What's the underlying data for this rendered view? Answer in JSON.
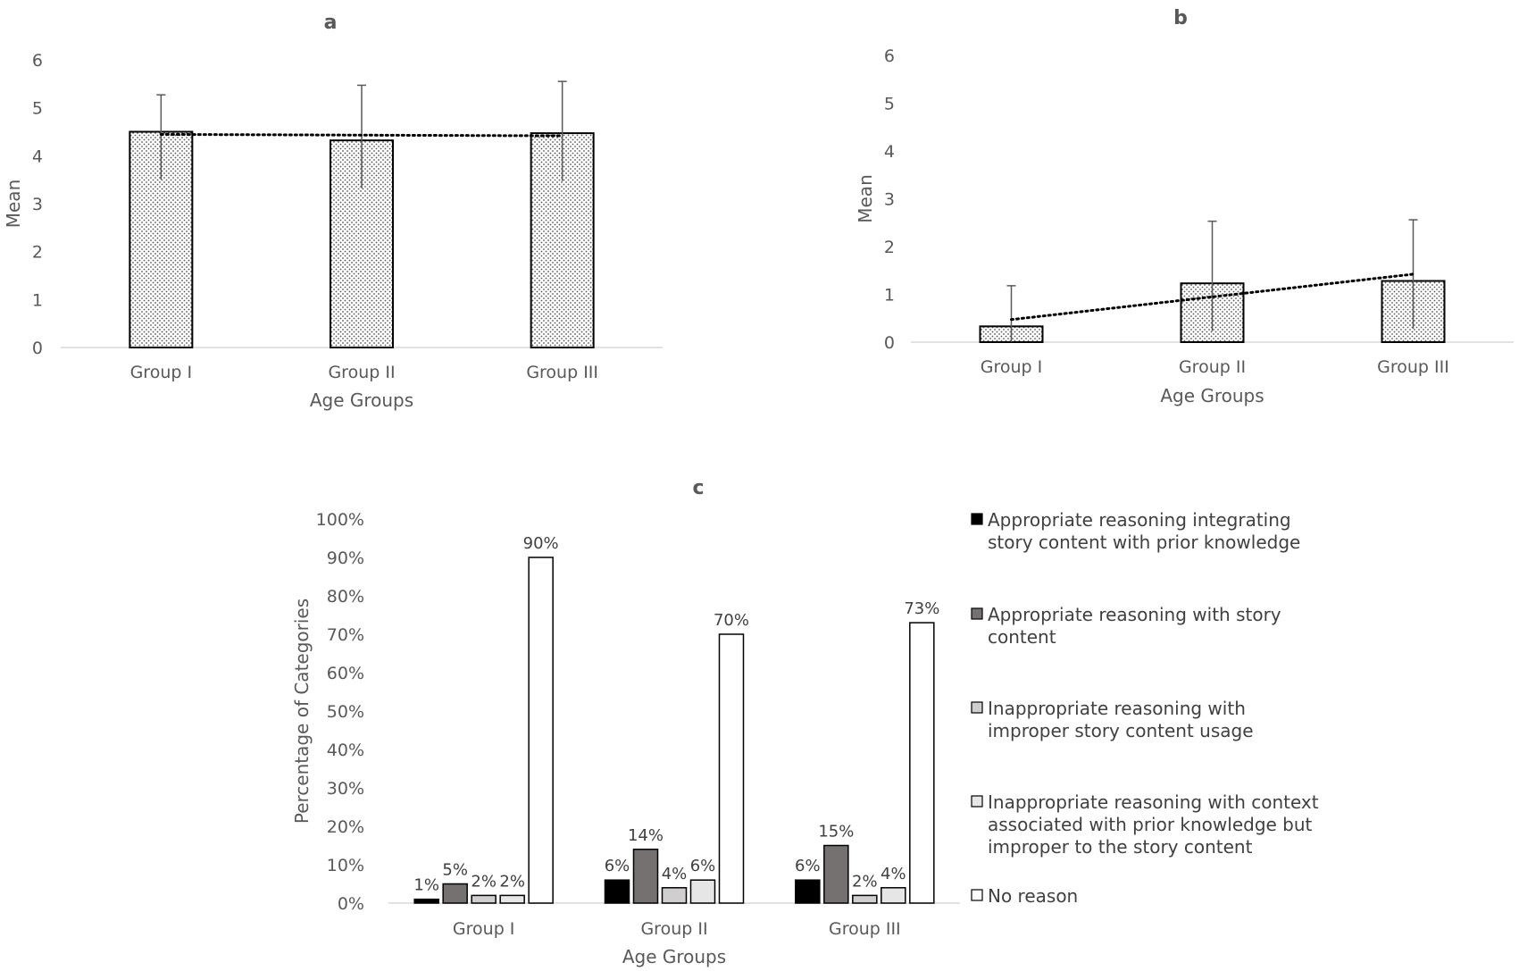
{
  "chart_data": [
    {
      "panel": "a",
      "type": "bar",
      "title": "a",
      "xlabel": "Age Groups",
      "ylabel": "Mean",
      "categories": [
        "Group I",
        "Group II",
        "Group III"
      ],
      "values": [
        4.5,
        4.32,
        4.47
      ],
      "error_plus": [
        0.77,
        1.15,
        1.08
      ],
      "error_minus": [
        1.0,
        1.0,
        1.0
      ],
      "ylim": [
        0,
        6
      ],
      "yticks": [
        "0",
        "1",
        "2",
        "3",
        "4",
        "5",
        "6"
      ],
      "trendline": "linear, dotted",
      "pattern": "dotted fill"
    },
    {
      "panel": "b",
      "type": "bar",
      "title": "b",
      "xlabel": "Age Groups",
      "ylabel": "Mean",
      "categories": [
        "Group I",
        "Group II",
        "Group III"
      ],
      "values": [
        0.33,
        1.23,
        1.28
      ],
      "error_plus": [
        0.85,
        1.3,
        1.28
      ],
      "error_minus": [
        0.33,
        1.0,
        1.0
      ],
      "ylim": [
        0,
        6
      ],
      "yticks": [
        "0",
        "1",
        "2",
        "3",
        "4",
        "5",
        "6"
      ],
      "trendline": "linear, dotted",
      "pattern": "dotted fill"
    },
    {
      "panel": "c",
      "type": "bar",
      "title": "c",
      "xlabel": "Age Groups",
      "ylabel": "Percentage of Categories",
      "categories": [
        "Group I",
        "Group II",
        "Group III"
      ],
      "ylim": [
        0,
        100
      ],
      "yticks": [
        "0%",
        "10%",
        "20%",
        "30%",
        "40%",
        "50%",
        "60%",
        "70%",
        "80%",
        "90%",
        "100%"
      ],
      "legend_position": "right",
      "series": [
        {
          "name": "Appropriate reasoning integrating story content with prior knowledge",
          "legend_lines": [
            "Appropriate reasoning integrating",
            "story content with prior knowledge"
          ],
          "color": "#000000",
          "values": [
            1,
            6,
            6
          ],
          "labels": [
            "1%",
            "6%",
            "6%"
          ]
        },
        {
          "name": "Appropriate reasoning with story content",
          "legend_lines": [
            "Appropriate reasoning with story",
            "content"
          ],
          "color": "#767171",
          "values": [
            5,
            14,
            15
          ],
          "labels": [
            "5%",
            "14%",
            "15%"
          ]
        },
        {
          "name": "Inappropriate reasoning with improper story content usage",
          "legend_lines": [
            "Inappropriate reasoning with",
            "improper story content usage"
          ],
          "color": "#d0cece",
          "values": [
            2,
            4,
            2
          ],
          "labels": [
            "2%",
            "4%",
            "2%"
          ]
        },
        {
          "name": "Inappropriate reasoning with context associated with prior knowledge but improper to the story content",
          "legend_lines": [
            "Inappropriate reasoning with context",
            "associated with prior knowledge but",
            "improper to the story content"
          ],
          "color": "#e7e6e6",
          "values": [
            2,
            6,
            4
          ],
          "labels": [
            "2%",
            "6%",
            "4%"
          ]
        },
        {
          "name": "No reason",
          "legend_lines": [
            "No reason"
          ],
          "color": "#ffffff",
          "values": [
            90,
            70,
            73
          ],
          "labels": [
            "90%",
            "70%",
            "73%"
          ]
        }
      ]
    }
  ]
}
